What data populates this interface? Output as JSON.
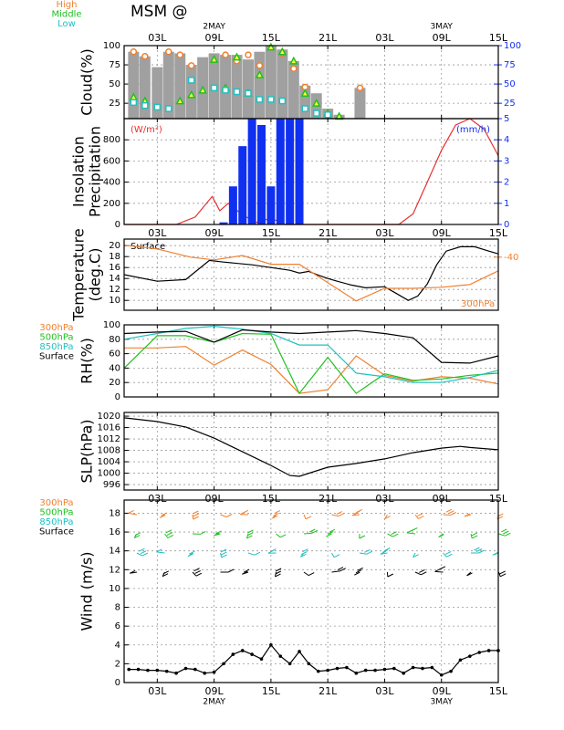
{
  "chart_data": [
    {
      "type": "bar",
      "title": "MSM @",
      "ylabel": [
        "Cloud(%)"
      ],
      "xlim": [
        -0.5,
        39
      ],
      "xticks": [
        {
          "value": 3,
          "label": "03L"
        },
        {
          "value": 9,
          "label": "09L"
        },
        {
          "value": 15,
          "label": "15L"
        },
        {
          "value": 21,
          "label": "21L"
        },
        {
          "value": 27,
          "label": "03L"
        },
        {
          "value": 33,
          "label": "09L"
        },
        {
          "value": 39,
          "label": "15L"
        }
      ],
      "xdates": [
        {
          "value": 9,
          "label": "2MAY"
        },
        {
          "value": 33,
          "label": "3MAY"
        }
      ],
      "ylim": [
        5,
        100
      ],
      "yticks": [
        25,
        50,
        75,
        100
      ],
      "y2lim": [
        5,
        100
      ],
      "y2ticks": [
        25,
        50,
        75,
        100
      ],
      "y2color": "#1030f0",
      "grid": true,
      "x": [
        0.5,
        1.7,
        3,
        4.2,
        5.4,
        6.6,
        7.8,
        9,
        10.2,
        11.4,
        12.6,
        13.8,
        15,
        16.2,
        17.4,
        18.6,
        19.8,
        21,
        22.2,
        24.4
      ],
      "total": {
        "color": "#a0a0a0",
        "values": [
          92,
          86,
          72,
          92,
          90,
          75,
          85,
          90,
          88,
          88,
          82,
          92,
          100,
          95,
          80,
          48,
          38,
          18,
          10,
          45
        ]
      },
      "series": [
        {
          "name": "High",
          "color": "#f08030",
          "marker": "circle",
          "values": [
            92,
            86,
            null,
            92,
            88,
            74,
            null,
            null,
            88,
            80,
            88,
            74,
            null,
            90,
            70,
            46,
            null,
            null,
            null,
            45
          ]
        },
        {
          "name": "Middle",
          "color": "#20c020",
          "marker": "triangle",
          "values": [
            33,
            28,
            null,
            null,
            28,
            36,
            42,
            82,
            45,
            85,
            38,
            62,
            98,
            92,
            80,
            38,
            25,
            12,
            8,
            null
          ]
        },
        {
          "name": "Low",
          "color": "#20c0c0",
          "marker": "square",
          "values": [
            26,
            22,
            20,
            18,
            null,
            55,
            null,
            45,
            42,
            40,
            38,
            30,
            30,
            28,
            null,
            18,
            12,
            10,
            null,
            null
          ]
        }
      ]
    },
    {
      "type": "bar-line",
      "ylabel": [
        "Insolation",
        "Precipitation"
      ],
      "xlim": [
        -0.5,
        39
      ],
      "xticks": [
        {
          "value": 3,
          "label": "03L"
        },
        {
          "value": 9,
          "label": "09L"
        },
        {
          "value": 15,
          "label": "15L"
        },
        {
          "value": 21,
          "label": "21L"
        },
        {
          "value": 27,
          "label": "03L"
        },
        {
          "value": 33,
          "label": "09L"
        },
        {
          "value": 39,
          "label": "15L"
        }
      ],
      "ylim": [
        0,
        1000
      ],
      "yticks": [
        0,
        200,
        400,
        600,
        800
      ],
      "y2lim": [
        0,
        5
      ],
      "y2ticks": [
        0,
        1,
        2,
        3,
        4,
        5
      ],
      "y2color": "#1030f0",
      "grid": true,
      "series": [
        {
          "label": "(W/m²)",
          "color": "#e83030",
          "x": [
            -0.5,
            5,
            7,
            8.8,
            9.6,
            10.5,
            12,
            13.5,
            15,
            16.5,
            28.5,
            30,
            31.5,
            33,
            34.5,
            36,
            37.5,
            39
          ],
          "values": [
            0,
            0,
            70,
            265,
            130,
            200,
            90,
            20,
            60,
            0,
            0,
            100,
            400,
            700,
            940,
            1000,
            900,
            650
          ]
        },
        {
          "label": "(mm/h)",
          "color": "#1030f0",
          "axis": "y2",
          "kind": "bar",
          "x": [
            10,
            11,
            12,
            13,
            14,
            15,
            16,
            17,
            18
          ],
          "values": [
            0.1,
            1.8,
            3.7,
            5,
            4.7,
            1.8,
            5,
            5,
            5
          ]
        }
      ]
    },
    {
      "type": "line",
      "ylabel": [
        "Temperature",
        "(deg.C)"
      ],
      "xlim": [
        -0.5,
        39
      ],
      "xticks": [
        3,
        9,
        15,
        21,
        27,
        33,
        39
      ],
      "ylim": [
        8.2,
        21.2
      ],
      "yticks": [
        10,
        12,
        14,
        16,
        18,
        20
      ],
      "y2lim": [
        -49.7,
        -36.7
      ],
      "y2ticks": [
        -40
      ],
      "y2color": "#f08030",
      "grid": true,
      "series": [
        {
          "name": "Surface",
          "color": "#000000",
          "x": [
            -0.5,
            3,
            6,
            8.5,
            10,
            13,
            15,
            17,
            18,
            19,
            20,
            21,
            22,
            23.5,
            25,
            27,
            28,
            29.5,
            30.5,
            31.5,
            32.5,
            33.5,
            35,
            36.5,
            38,
            39
          ],
          "values": [
            14.7,
            13.5,
            13.8,
            17.3,
            17,
            16.5,
            16,
            15.5,
            15,
            15.3,
            14.6,
            14,
            13.5,
            12.8,
            12.3,
            12.5,
            11.5,
            10,
            10.8,
            13,
            16.5,
            19,
            19.8,
            19.8,
            19,
            18.5
          ]
        },
        {
          "name": "300hPa",
          "color": "#f08030",
          "axis": "y2",
          "x": [
            -0.5,
            3,
            6.5,
            9,
            12,
            15,
            18,
            24,
            27,
            30,
            33,
            36,
            39
          ],
          "values": [
            -37.8,
            -38.5,
            -40,
            -40.5,
            -39.7,
            -41.3,
            -41.3,
            -48,
            -45.7,
            -45.7,
            -45.5,
            -45,
            -42.5
          ]
        }
      ]
    },
    {
      "type": "line",
      "ylabel": [
        "RH(%)"
      ],
      "xlim": [
        -0.5,
        39
      ],
      "xticks": [
        3,
        9,
        15,
        21,
        27,
        33,
        39
      ],
      "ylim": [
        0,
        100
      ],
      "yticks": [
        0,
        20,
        40,
        60,
        80,
        100
      ],
      "grid": true,
      "x": [
        -0.5,
        3,
        6,
        9,
        12,
        15,
        18,
        21,
        24,
        27,
        30,
        33,
        36,
        39
      ],
      "series": [
        {
          "name": "300hPa",
          "color": "#f08030",
          "values": [
            68,
            68,
            70,
            44,
            65,
            45,
            5,
            10,
            57,
            30,
            22,
            28,
            26,
            18
          ]
        },
        {
          "name": "500hPa",
          "color": "#20c020",
          "values": [
            40,
            85,
            85,
            76,
            88,
            87,
            5,
            55,
            5,
            32,
            23,
            25,
            30,
            33
          ]
        },
        {
          "name": "850hPa",
          "color": "#20c0c0",
          "values": [
            80,
            88,
            95,
            98,
            94,
            88,
            72,
            72,
            33,
            28,
            20,
            20,
            27,
            37
          ]
        },
        {
          "name": "Surface",
          "color": "#000000",
          "values": [
            88,
            90,
            91,
            76,
            93,
            90,
            88,
            90,
            92,
            88,
            82,
            48,
            47,
            57
          ]
        }
      ]
    },
    {
      "type": "line",
      "ylabel": [
        "SLP(hPa)"
      ],
      "xlim": [
        -0.5,
        39
      ],
      "xticks": [
        {
          "value": 3,
          "label": "03L"
        },
        {
          "value": 9,
          "label": "09L"
        },
        {
          "value": 15,
          "label": "15L"
        },
        {
          "value": 21,
          "label": "21L"
        },
        {
          "value": 27,
          "label": "03L"
        },
        {
          "value": 33,
          "label": "09L"
        },
        {
          "value": 39,
          "label": "15L"
        }
      ],
      "ylim": [
        994.1,
        1021.3
      ],
      "yticks": [
        996,
        1000,
        1004,
        1008,
        1012,
        1016,
        1020
      ],
      "grid": true,
      "series": [
        {
          "color": "#000000",
          "x": [
            -0.5,
            3,
            6,
            9,
            12,
            15,
            17,
            18,
            21,
            24,
            27,
            30,
            33,
            35,
            36,
            39
          ],
          "values": [
            1019.4,
            1018.1,
            1016.2,
            1012.3,
            1007.5,
            1002.7,
            999.2,
            998.9,
            1002.1,
            1003.4,
            1005,
            1007.2,
            1008.8,
            1009.4,
            1009,
            1008.2
          ]
        }
      ]
    },
    {
      "type": "wind",
      "ylabel": [
        "Wind  (m/s)"
      ],
      "xlim": [
        -0.5,
        39
      ],
      "xticks": [
        {
          "value": 3,
          "label": "03L"
        },
        {
          "value": 9,
          "label": "09L"
        },
        {
          "value": 15,
          "label": "15L"
        },
        {
          "value": 21,
          "label": "21L"
        },
        {
          "value": 27,
          "label": "03L"
        },
        {
          "value": 33,
          "label": "09L"
        },
        {
          "value": 39,
          "label": "15L"
        }
      ],
      "xdates": [
        {
          "value": 9,
          "label": "2MAY"
        },
        {
          "value": 33,
          "label": "3MAY"
        }
      ],
      "ylim": [
        0,
        19.4
      ],
      "yticks": [
        0,
        2,
        4,
        6,
        8,
        10,
        12,
        14,
        16,
        18
      ],
      "grid": true,
      "series": [
        {
          "name": "300hPa",
          "color": "#f08030"
        },
        {
          "name": "500hPa",
          "color": "#20c020"
        },
        {
          "name": "850hPa",
          "color": "#20c0c0"
        },
        {
          "name": "Surface",
          "color": "#000000",
          "x": [
            0,
            1,
            2,
            3,
            4,
            5,
            6,
            7,
            8,
            9,
            10,
            11,
            12,
            13,
            14,
            15,
            16,
            17,
            18,
            19,
            20,
            21,
            22,
            23,
            24,
            25,
            26,
            27,
            28,
            29,
            30,
            31,
            32,
            33,
            34,
            35,
            36,
            37,
            38,
            39
          ],
          "values": [
            1.4,
            1.4,
            1.3,
            1.3,
            1.2,
            1.0,
            1.5,
            1.4,
            1.0,
            1.1,
            2.0,
            3.0,
            3.4,
            3.0,
            2.5,
            4.0,
            2.8,
            2.0,
            3.3,
            2.0,
            1.2,
            1.3,
            1.5,
            1.6,
            1.0,
            1.3,
            1.3,
            1.4,
            1.5,
            1.0,
            1.6,
            1.5,
            1.6,
            0.8,
            1.2,
            2.4,
            2.8,
            3.2,
            3.4,
            3.4
          ]
        }
      ]
    }
  ]
}
